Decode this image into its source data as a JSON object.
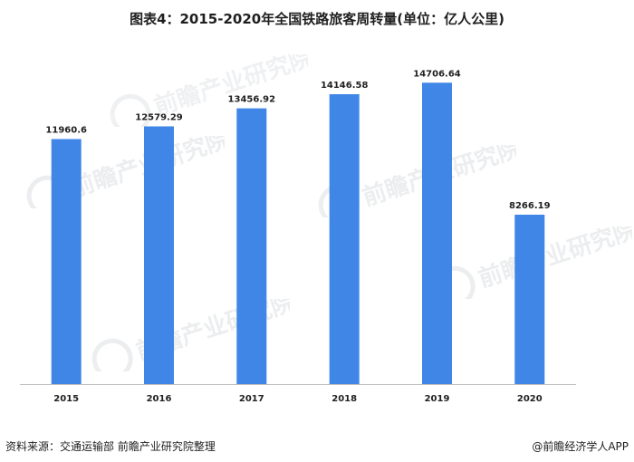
{
  "chart_data": {
    "type": "bar",
    "title": "图表4：2015-2020年全国铁路旅客周转量(单位：亿人公里)",
    "categories": [
      "2015",
      "2016",
      "2017",
      "2018",
      "2019",
      "2020"
    ],
    "values": [
      11960.6,
      12579.29,
      13456.92,
      14146.58,
      14706.64,
      8266.19
    ],
    "value_labels": [
      "11960.6",
      "12579.29",
      "13456.92",
      "14146.58",
      "14706.64",
      "8266.19"
    ],
    "xlabel": "",
    "ylabel": "",
    "ylim": [
      0,
      16800
    ],
    "grid": false,
    "legend": "none",
    "bar_color": "#3f86e6"
  },
  "footer": {
    "source": "资料来源：交通运输部 前瞻产业研究院整理",
    "brand": "@前瞻经济学人APP"
  },
  "watermark": {
    "text": "前瞻产业研究院"
  }
}
